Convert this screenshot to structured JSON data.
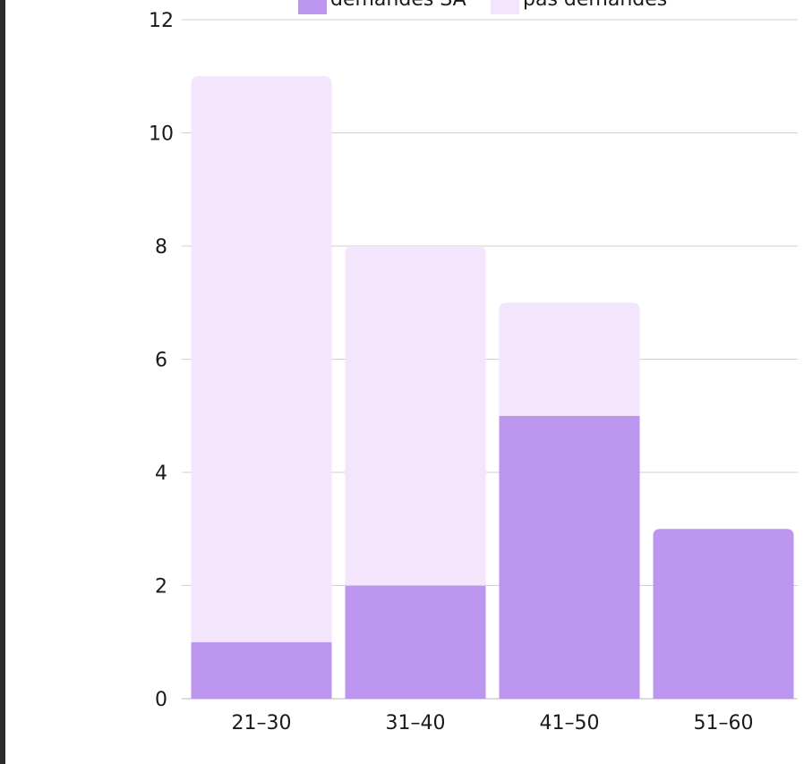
{
  "chart_data": {
    "type": "bar",
    "stacked": true,
    "categories": [
      "21–30",
      "31–40",
      "41–50",
      "51–60"
    ],
    "series": [
      {
        "name": "demandes SA",
        "values": [
          1,
          2,
          5,
          3
        ],
        "color": "#bb95ee"
      },
      {
        "name": "pas demandes",
        "values": [
          10,
          6,
          2,
          0
        ],
        "color": "#f3e6fc"
      }
    ],
    "ylim": [
      0,
      12
    ],
    "yticks": [
      0,
      2,
      4,
      6,
      8,
      10,
      12
    ],
    "grid": true,
    "gridColor": "#cfcfcf",
    "legend": "top-center",
    "title": "",
    "xlabel": "",
    "ylabel": ""
  }
}
